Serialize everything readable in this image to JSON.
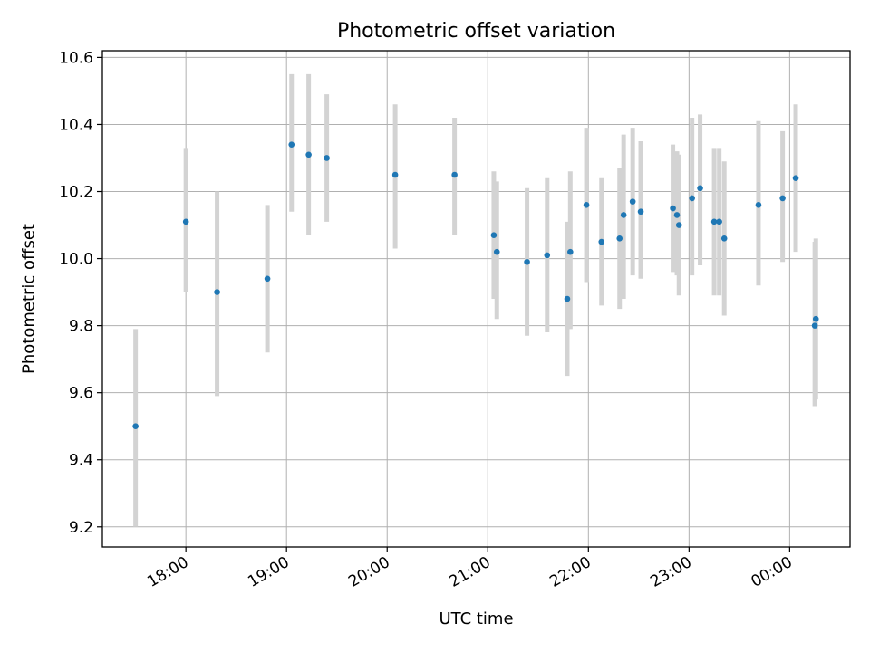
{
  "chart_data": {
    "type": "scatter",
    "title": "Photometric offset variation",
    "xlabel": "UTC time",
    "ylabel": "Photometric offset",
    "x_unit": "hours of UTC time (continuing past midnight: 24.0 = 00:00)",
    "xlim": [
      17.17,
      24.6
    ],
    "ylim": [
      9.14,
      10.62
    ],
    "x_ticks": [
      {
        "value": 18.0,
        "label": "18:00"
      },
      {
        "value": 19.0,
        "label": "19:00"
      },
      {
        "value": 20.0,
        "label": "20:00"
      },
      {
        "value": 21.0,
        "label": "21:00"
      },
      {
        "value": 22.0,
        "label": "22:00"
      },
      {
        "value": 23.0,
        "label": "23:00"
      },
      {
        "value": 24.0,
        "label": "00:00"
      }
    ],
    "y_ticks": [
      {
        "value": 9.2,
        "label": "9.2"
      },
      {
        "value": 9.4,
        "label": "9.4"
      },
      {
        "value": 9.6,
        "label": "9.6"
      },
      {
        "value": 9.8,
        "label": "9.8"
      },
      {
        "value": 10.0,
        "label": "10.0"
      },
      {
        "value": 10.2,
        "label": "10.2"
      },
      {
        "value": 10.4,
        "label": "10.4"
      },
      {
        "value": 10.6,
        "label": "10.6"
      }
    ],
    "grid": true,
    "marker_color": "#1f77b4",
    "errorbar_color": "#d3d3d3",
    "points": [
      {
        "x": 17.5,
        "y": 9.5,
        "ylow": 9.2,
        "yhigh": 9.79
      },
      {
        "x": 18.0,
        "y": 10.11,
        "ylow": 9.9,
        "yhigh": 10.33
      },
      {
        "x": 18.31,
        "y": 9.9,
        "ylow": 9.59,
        "yhigh": 10.2
      },
      {
        "x": 18.81,
        "y": 9.94,
        "ylow": 9.72,
        "yhigh": 10.16
      },
      {
        "x": 19.05,
        "y": 10.34,
        "ylow": 10.14,
        "yhigh": 10.55
      },
      {
        "x": 19.22,
        "y": 10.31,
        "ylow": 10.07,
        "yhigh": 10.55
      },
      {
        "x": 19.4,
        "y": 10.3,
        "ylow": 10.11,
        "yhigh": 10.49
      },
      {
        "x": 20.08,
        "y": 10.25,
        "ylow": 10.03,
        "yhigh": 10.46
      },
      {
        "x": 20.67,
        "y": 10.25,
        "ylow": 10.07,
        "yhigh": 10.42
      },
      {
        "x": 21.06,
        "y": 10.07,
        "ylow": 9.88,
        "yhigh": 10.26
      },
      {
        "x": 21.09,
        "y": 10.02,
        "ylow": 9.82,
        "yhigh": 10.23
      },
      {
        "x": 21.39,
        "y": 9.99,
        "ylow": 9.77,
        "yhigh": 10.21
      },
      {
        "x": 21.59,
        "y": 10.01,
        "ylow": 9.78,
        "yhigh": 10.24
      },
      {
        "x": 21.79,
        "y": 9.88,
        "ylow": 9.65,
        "yhigh": 10.11
      },
      {
        "x": 21.82,
        "y": 10.02,
        "ylow": 9.79,
        "yhigh": 10.26
      },
      {
        "x": 21.98,
        "y": 10.16,
        "ylow": 9.93,
        "yhigh": 10.39
      },
      {
        "x": 22.13,
        "y": 10.05,
        "ylow": 9.86,
        "yhigh": 10.24
      },
      {
        "x": 22.31,
        "y": 10.06,
        "ylow": 9.85,
        "yhigh": 10.27
      },
      {
        "x": 22.35,
        "y": 10.13,
        "ylow": 9.88,
        "yhigh": 10.37
      },
      {
        "x": 22.44,
        "y": 10.17,
        "ylow": 9.95,
        "yhigh": 10.39
      },
      {
        "x": 22.52,
        "y": 10.14,
        "ylow": 9.94,
        "yhigh": 10.35
      },
      {
        "x": 22.84,
        "y": 10.15,
        "ylow": 9.96,
        "yhigh": 10.34
      },
      {
        "x": 22.88,
        "y": 10.13,
        "ylow": 9.95,
        "yhigh": 10.32
      },
      {
        "x": 22.9,
        "y": 10.1,
        "ylow": 9.89,
        "yhigh": 10.31
      },
      {
        "x": 23.03,
        "y": 10.18,
        "ylow": 9.95,
        "yhigh": 10.42
      },
      {
        "x": 23.11,
        "y": 10.21,
        "ylow": 9.98,
        "yhigh": 10.43
      },
      {
        "x": 23.25,
        "y": 10.11,
        "ylow": 9.89,
        "yhigh": 10.33
      },
      {
        "x": 23.3,
        "y": 10.11,
        "ylow": 9.89,
        "yhigh": 10.33
      },
      {
        "x": 23.35,
        "y": 10.06,
        "ylow": 9.83,
        "yhigh": 10.29
      },
      {
        "x": 23.69,
        "y": 10.16,
        "ylow": 9.92,
        "yhigh": 10.41
      },
      {
        "x": 23.93,
        "y": 10.18,
        "ylow": 9.99,
        "yhigh": 10.38
      },
      {
        "x": 24.06,
        "y": 10.24,
        "ylow": 10.02,
        "yhigh": 10.46
      },
      {
        "x": 24.25,
        "y": 9.8,
        "ylow": 9.56,
        "yhigh": 10.05
      },
      {
        "x": 24.26,
        "y": 9.82,
        "ylow": 9.58,
        "yhigh": 10.06
      }
    ]
  }
}
